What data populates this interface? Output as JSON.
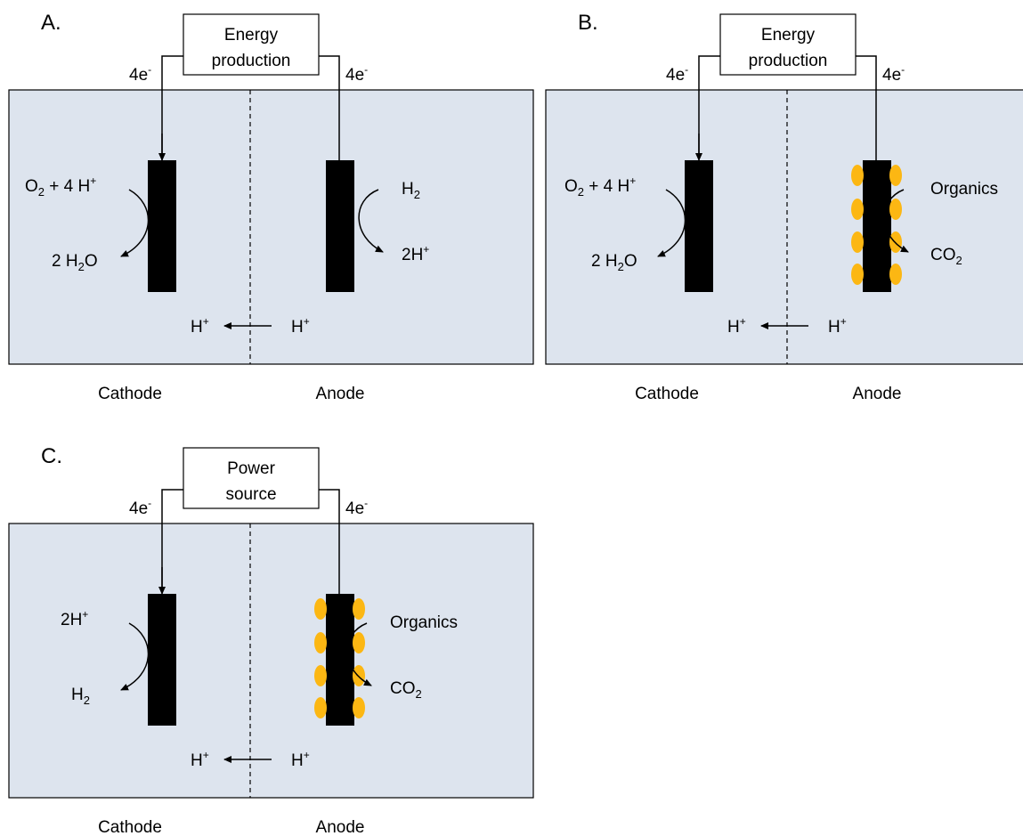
{
  "colors": {
    "cell_fill": "#dde4ee",
    "electrode": "#000000",
    "microbe": "#fcb713",
    "line": "#000000",
    "background": "#ffffff"
  },
  "panels": {
    "A": {
      "letter": "A.",
      "box_label": [
        "Energy",
        "production"
      ],
      "electron_left": "4e",
      "electron_right": "4e",
      "electron_sup": "-",
      "cathode_reactant": {
        "text": "O",
        "sub": "2",
        "rest": " + 4 H",
        "sup": "+"
      },
      "cathode_product": {
        "text": "2 H",
        "sub": "2",
        "rest": "O"
      },
      "anode_reactant": {
        "text": "H",
        "sub": "2"
      },
      "anode_product": {
        "text": "2H",
        "sup": "+"
      },
      "proton_left": {
        "text": "H",
        "sup": "+"
      },
      "proton_right": {
        "text": "H",
        "sup": "+"
      },
      "cathode_label": "Cathode",
      "anode_label": "Anode"
    },
    "B": {
      "letter": "B.",
      "box_label": [
        "Energy",
        "production"
      ],
      "electron_left": "4e",
      "electron_right": "4e",
      "electron_sup": "-",
      "cathode_reactant": {
        "text": "O",
        "sub": "2",
        "rest": " + 4 H",
        "sup": "+"
      },
      "cathode_product": {
        "text": "2 H",
        "sub": "2",
        "rest": "O"
      },
      "anode_reactant": {
        "text": "Organics"
      },
      "anode_product": {
        "text": "CO",
        "sub": "2"
      },
      "proton_left": {
        "text": "H",
        "sup": "+"
      },
      "proton_right": {
        "text": "H",
        "sup": "+"
      },
      "cathode_label": "Cathode",
      "anode_label": "Anode"
    },
    "C": {
      "letter": "C.",
      "box_label": [
        "Power",
        "source"
      ],
      "electron_left": "4e",
      "electron_right": "4e",
      "electron_sup": "-",
      "cathode_reactant": {
        "text": "2H",
        "sup": "+"
      },
      "cathode_product": {
        "text": "H",
        "sub": "2"
      },
      "anode_reactant": {
        "text": "Organics"
      },
      "anode_product": {
        "text": "CO",
        "sub": "2"
      },
      "proton_left": {
        "text": "H",
        "sup": "+"
      },
      "proton_right": {
        "text": "H",
        "sup": "+"
      },
      "cathode_label": "Cathode",
      "anode_label": "Anode"
    }
  }
}
